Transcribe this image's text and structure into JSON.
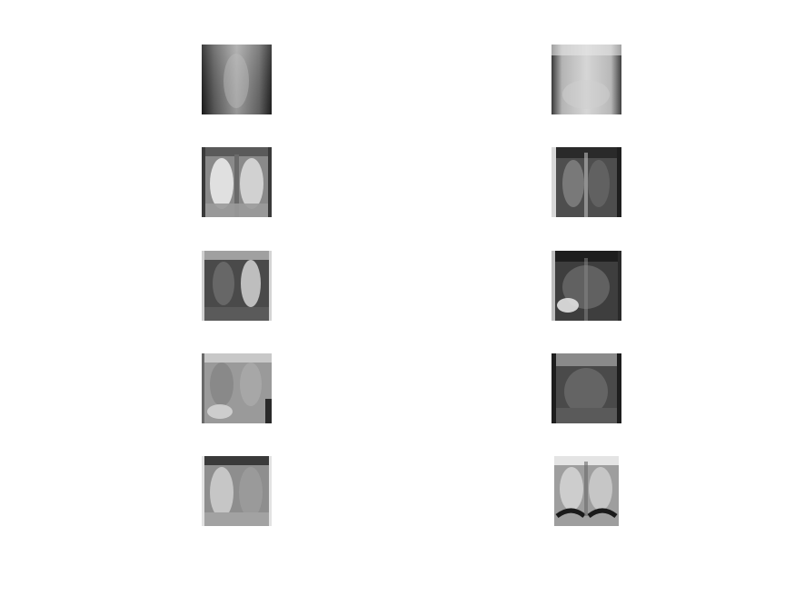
{
  "figure": {
    "background": "#ffffff",
    "tiles": [
      {
        "id": "r1c1",
        "tone": "dark-edges-mid-center"
      },
      {
        "id": "r1c2",
        "tone": "light-overall"
      },
      {
        "id": "r2c1",
        "tone": "bright-lungs"
      },
      {
        "id": "r2c2",
        "tone": "dark-overall"
      },
      {
        "id": "r3c1",
        "tone": "dark-bright-right-lung"
      },
      {
        "id": "r3c2",
        "tone": "dark-bright-lower-left"
      },
      {
        "id": "r4c1",
        "tone": "mid-gray-diffuse"
      },
      {
        "id": "r4c2",
        "tone": "dark-center"
      },
      {
        "id": "r5c1",
        "tone": "light-lungs"
      },
      {
        "id": "r5c2",
        "tone": "high-contrast-diaphragm"
      }
    ]
  }
}
